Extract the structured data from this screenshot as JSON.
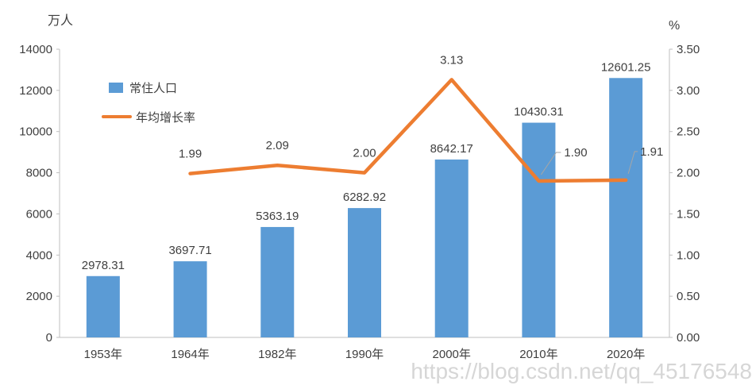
{
  "watermark": "https://blog.csdn.net/qq_45176548",
  "chart_data": {
    "type": "bar+line",
    "categories": [
      "1953年",
      "1964年",
      "1982年",
      "1990年",
      "2000年",
      "2010年",
      "2020年"
    ],
    "series": [
      {
        "name": "常住人口",
        "type": "bar",
        "axis": "left",
        "color": "#5B9BD5",
        "values": [
          2978.31,
          3697.71,
          5363.19,
          6282.92,
          8642.17,
          10430.31,
          12601.25
        ],
        "labels": [
          "2978.31",
          "3697.71",
          "5363.19",
          "6282.92",
          "8642.17",
          "10430.31",
          "12601.25"
        ]
      },
      {
        "name": "年均增长率",
        "type": "line",
        "axis": "right",
        "color": "#ED7D31",
        "values": [
          null,
          1.99,
          2.09,
          2.0,
          3.13,
          1.9,
          1.91
        ],
        "labels": [
          "",
          "1.99",
          "2.09",
          "2.00",
          "3.13",
          "1.90",
          "1.91"
        ]
      }
    ],
    "left_axis": {
      "unit": "万人",
      "min": 0,
      "max": 14000,
      "step": 2000,
      "ticks": [
        "0",
        "2000",
        "4000",
        "6000",
        "8000",
        "10000",
        "12000",
        "14000"
      ]
    },
    "right_axis": {
      "unit": "%",
      "min": 0,
      "max": 3.5,
      "step": 0.5,
      "ticks": [
        "0.00",
        "0.50",
        "1.00",
        "1.50",
        "2.00",
        "2.50",
        "3.00",
        "3.50"
      ]
    },
    "legend": [
      {
        "label": "常住人口",
        "color": "#5B9BD5",
        "marker": "square"
      },
      {
        "label": "年均增长率",
        "color": "#ED7D31",
        "marker": "line"
      }
    ],
    "grid": false,
    "legend_position": "top-left-inside"
  }
}
